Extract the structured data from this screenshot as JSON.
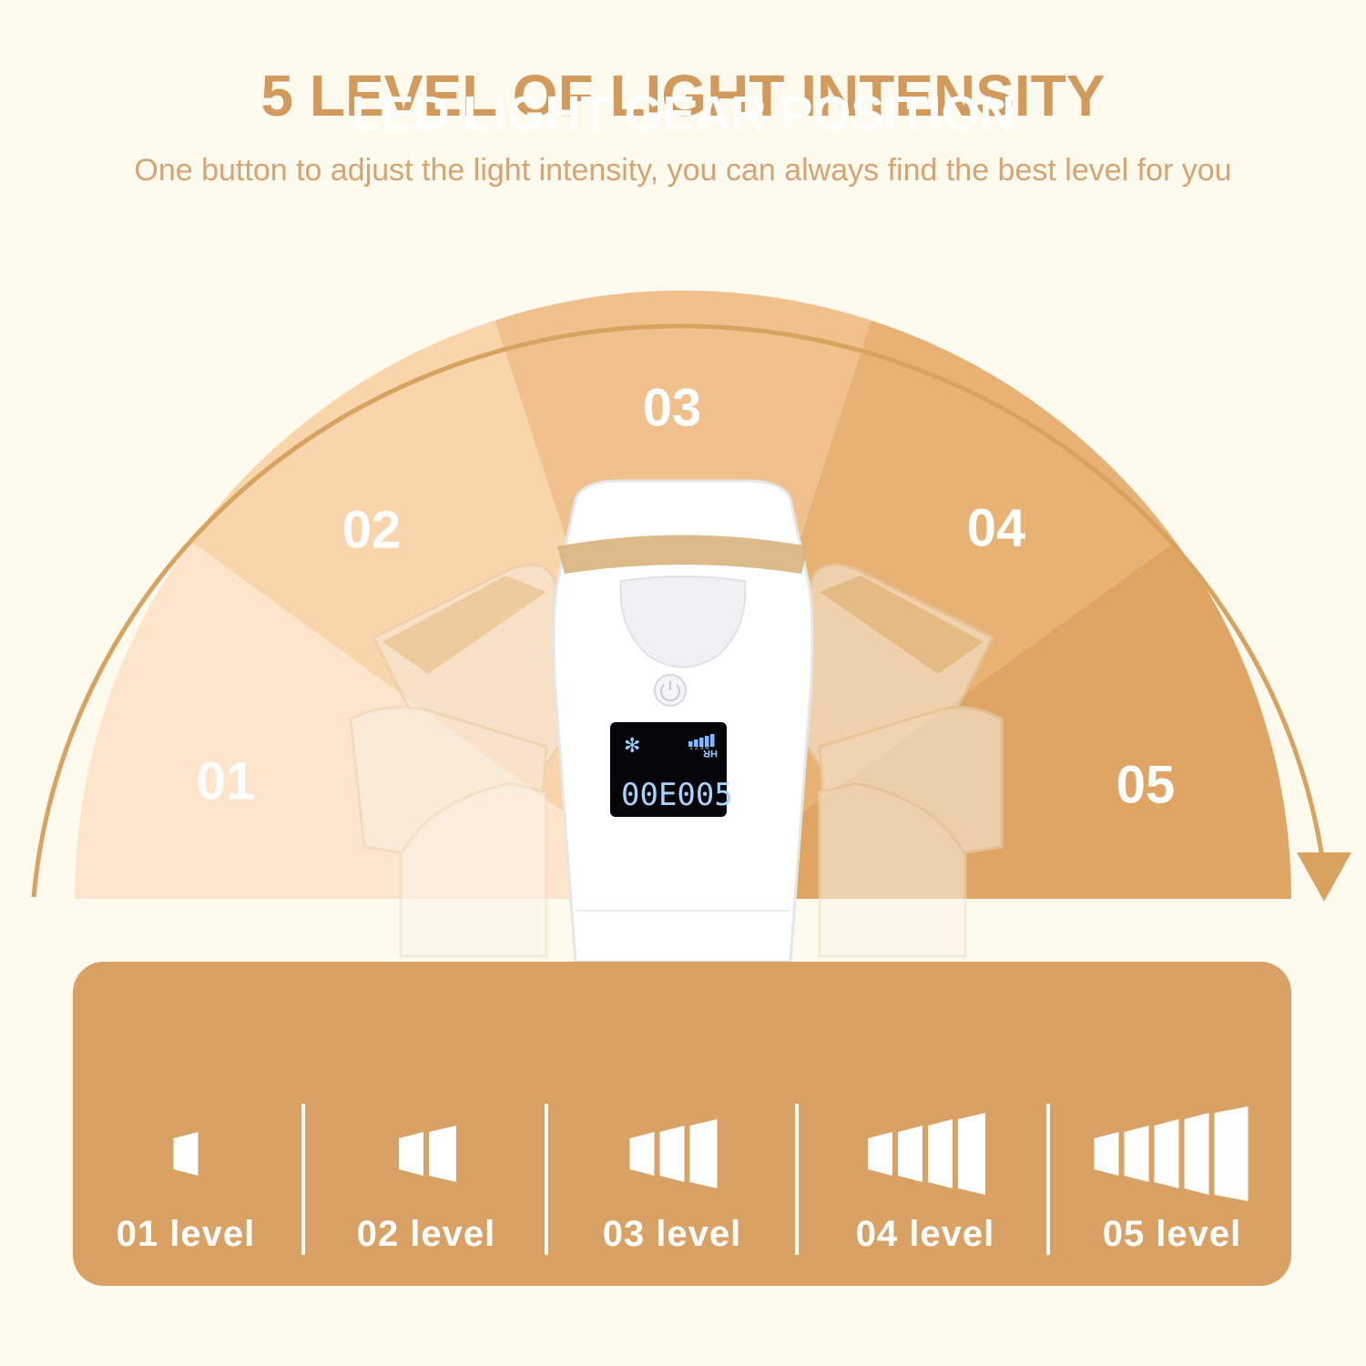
{
  "header": {
    "title": "5 LEVEL OF LIGHT INTENSITY",
    "subtitle": "One button to adjust the light intensity, you can  always find the best level for you"
  },
  "dial": {
    "levels": [
      {
        "label": "01",
        "color": "#fde5cb"
      },
      {
        "label": "02",
        "color": "#f9d5ac"
      },
      {
        "label": "03",
        "color": "#f0c08d"
      },
      {
        "label": "04",
        "color": "#e8b274"
      },
      {
        "label": "05",
        "color": "#dfa565"
      }
    ],
    "arrow_color": "#d7a35f"
  },
  "device": {
    "lcd_value": "00E005",
    "lcd_unit": "HR",
    "lcd_bars": "1 2 3 4"
  },
  "gear_panel": {
    "title": "LED LIGHT GEAR POSITION",
    "levels": [
      {
        "label": "01 level",
        "bars": 1
      },
      {
        "label": "02 level",
        "bars": 2
      },
      {
        "label": "03 level",
        "bars": 3
      },
      {
        "label": "04 level",
        "bars": 4
      },
      {
        "label": "05 level",
        "bars": 5
      }
    ]
  }
}
